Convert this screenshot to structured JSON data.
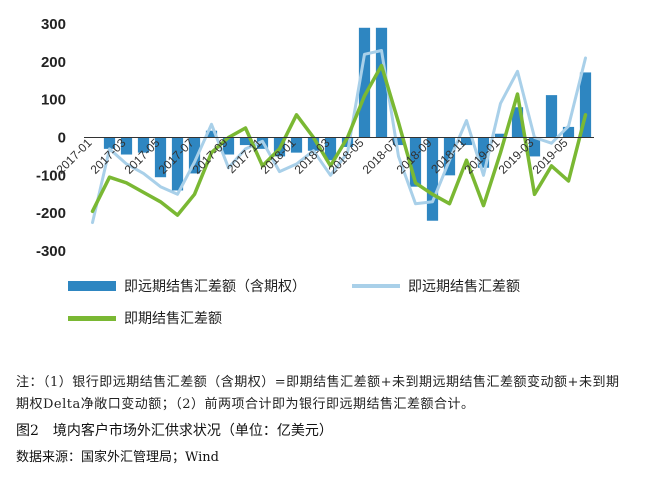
{
  "chart_data": {
    "type": "bar",
    "ylim": [
      -300,
      300
    ],
    "yticks": [
      300,
      200,
      100,
      0,
      -100,
      -200,
      -300
    ],
    "grid": false,
    "legend_position": "bottom",
    "colors": {
      "bars": "#2E86C1",
      "light_line": "#A9D0E9",
      "green_line": "#7AB833"
    },
    "categories": [
      "2017-01",
      "2017-02",
      "2017-03",
      "2017-04",
      "2017-05",
      "2017-06",
      "2017-07",
      "2017-08",
      "2017-09",
      "2017-10",
      "2017-11",
      "2017-12",
      "2018-01",
      "2018-02",
      "2018-03",
      "2018-04",
      "2018-05",
      "2018-06",
      "2018-07",
      "2018-08",
      "2018-09",
      "2018-10",
      "2018-11",
      "2018-12",
      "2019-01",
      "2019-02",
      "2019-03",
      "2019-04",
      "2019-05",
      "2019-06"
    ],
    "tick_labels": [
      "2017-01",
      "2017-03",
      "2017-05",
      "2017-07",
      "2017-09",
      "2017-11",
      "2018-01",
      "2018-03",
      "2018-05",
      "2018-07",
      "2018-09",
      "2018-11",
      "2019-01",
      "2019-03",
      "2019-05"
    ],
    "series": [
      {
        "name": "即远期结售汇差额（含期权）",
        "kind": "bar",
        "values": [
          0,
          -30,
          -45,
          -40,
          -105,
          -140,
          -95,
          18,
          -45,
          -20,
          -30,
          -50,
          -40,
          -35,
          -60,
          -25,
          290,
          290,
          -20,
          -130,
          -220,
          -100,
          -20,
          -80,
          10,
          80,
          -50,
          112,
          28,
          172
        ]
      },
      {
        "name": "即远期结售汇差额",
        "kind": "line",
        "values": [
          -225,
          -30,
          -70,
          -95,
          -130,
          -150,
          -65,
          35,
          -80,
          -30,
          -10,
          -90,
          -70,
          -35,
          -100,
          -40,
          220,
          230,
          -50,
          -175,
          -170,
          -60,
          45,
          -100,
          90,
          175,
          0,
          -15,
          30,
          210
        ]
      },
      {
        "name": "即期结售汇差额",
        "kind": "line",
        "values": [
          -195,
          -105,
          -120,
          -145,
          -170,
          -205,
          -150,
          -40,
          0,
          25,
          -75,
          -30,
          60,
          0,
          -75,
          0,
          110,
          190,
          40,
          -120,
          -150,
          -175,
          -60,
          -180,
          -40,
          115,
          -150,
          -75,
          -115,
          60
        ]
      }
    ]
  },
  "legend": [
    {
      "label": "即远期结售汇差额（含期权）",
      "color": "#2E86C1"
    },
    {
      "label": "即远期结售汇差额",
      "color": "#A9D0E9"
    },
    {
      "label": "即期结售汇差额",
      "color": "#7AB833"
    }
  ],
  "footer": {
    "note": "注：（1）银行即远期结售汇差额（含期权）=即期结售汇差额+未到期远期结售汇差额变动额+未到期期权Delta净敞口变动额；（2）前两项合计即为银行即远期结售汇差额合计。",
    "figure_title": "图2　境内客户市场外汇供求状况（单位：亿美元）",
    "source": "数据来源：国家外汇管理局；Wind"
  }
}
